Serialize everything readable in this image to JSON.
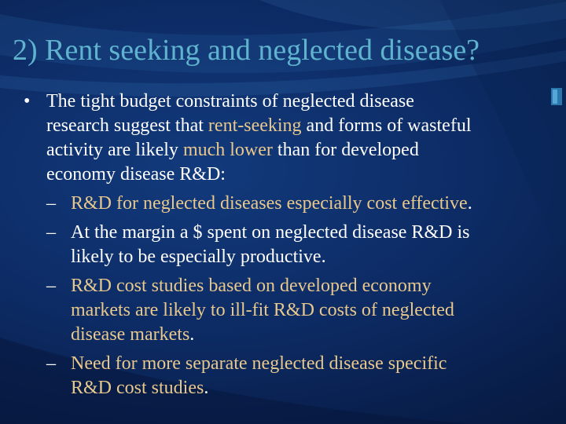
{
  "slide": {
    "title": "2) Rent seeking and neglected disease?",
    "bullet_symbol": "•",
    "dash_symbol": "–",
    "bullet": {
      "line1": "The tight budget constraints of neglected disease",
      "line2_a": "research suggest that ",
      "line2_b": "rent-seeking",
      "line2_c": " and forms of wasteful",
      "line3_a": "activity are likely ",
      "line3_b": "much lower",
      "line3_c": " than for developed",
      "line4": "economy disease R&D:"
    },
    "sub1": {
      "text": "R&D for neglected diseases especially cost effective",
      "end": "."
    },
    "sub2": {
      "line1": "At the margin a $ spent on neglected disease R&D is",
      "line2": "likely to be especially productive."
    },
    "sub3": {
      "line1": "R&D cost studies based on developed economy",
      "line2": "markets are likely to ill-fit R&D costs of neglected",
      "line3": "disease markets",
      "end": "."
    },
    "sub4": {
      "line1": "Need for more separate neglected disease specific",
      "line2": "R&D cost studies",
      "end": "."
    },
    "colors": {
      "background": "#0d2c66",
      "title": "#5fb3cf",
      "text": "#ffffff",
      "highlight": "#e8c88c"
    }
  }
}
